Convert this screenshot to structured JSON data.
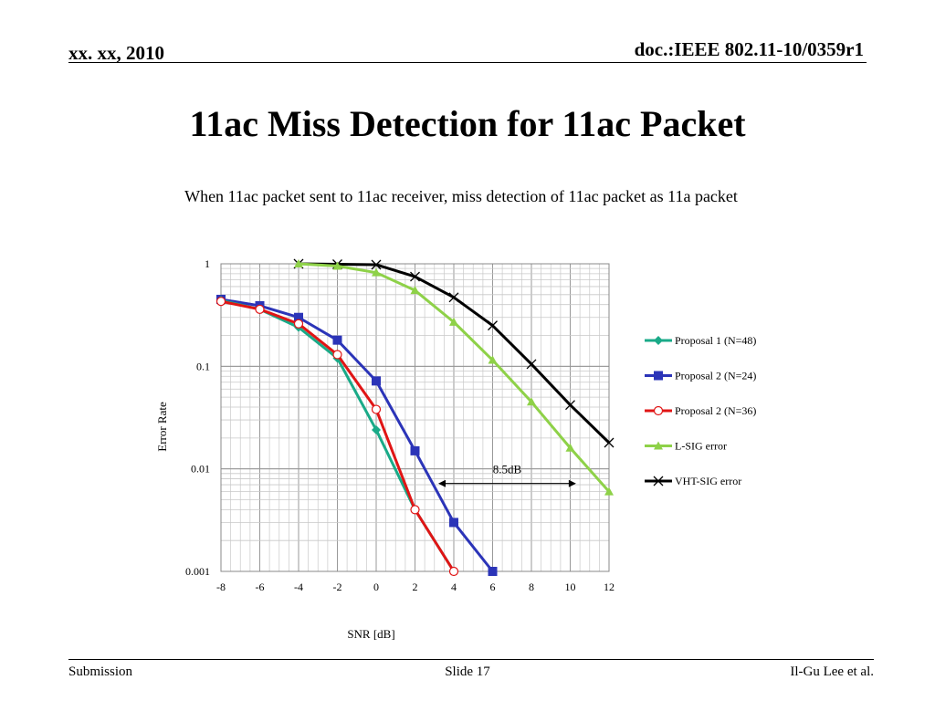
{
  "header": {
    "date": "xx. xx, 2010",
    "doc": "doc.:IEEE 802.11-10/0359r1"
  },
  "title": "11ac Miss Detection for 11ac Packet",
  "subtitle": "When 11ac packet sent to 11ac receiver, miss detection of 11ac packet as 11a packet",
  "footer": {
    "left": "Submission",
    "center": "Slide 17",
    "right": "Il-Gu Lee et al."
  },
  "chart_data": {
    "type": "line",
    "xlabel": "SNR [dB]",
    "ylabel": "Error Rate",
    "xlim": [
      -8,
      12
    ],
    "xticks": [
      -8,
      -6,
      -4,
      -2,
      0,
      2,
      4,
      6,
      8,
      10,
      12
    ],
    "ylim": [
      0.001,
      1
    ],
    "yscale": "log",
    "yticks": [
      {
        "value": 1,
        "label": "1"
      },
      {
        "value": 0.1,
        "label": "0.1"
      },
      {
        "value": 0.01,
        "label": "0.01"
      },
      {
        "value": 0.001,
        "label": "0.001"
      }
    ],
    "grid": true,
    "legend_position": "right",
    "series": [
      {
        "name": "Proposal 1 (N=48)",
        "color": "#1aaa88",
        "marker": "diamond",
        "x": [
          -8,
          -6,
          -4,
          -2,
          0,
          2,
          4
        ],
        "y": [
          0.44,
          0.36,
          0.24,
          0.12,
          0.024,
          0.004,
          0.001
        ]
      },
      {
        "name": "Proposal 2 (N=24)",
        "color": "#2b34b8",
        "marker": "square",
        "x": [
          -8,
          -6,
          -4,
          -2,
          0,
          2,
          4,
          6
        ],
        "y": [
          0.45,
          0.39,
          0.3,
          0.18,
          0.072,
          0.015,
          0.003,
          0.001
        ]
      },
      {
        "name": "Proposal 2 (N=36)",
        "color": "#e01515",
        "marker": "circle",
        "x": [
          -8,
          -6,
          -4,
          -2,
          0,
          2,
          4
        ],
        "y": [
          0.43,
          0.36,
          0.26,
          0.13,
          0.038,
          0.004,
          0.001
        ]
      },
      {
        "name": "L-SIG error",
        "color": "#8ed148",
        "marker": "triangle",
        "x": [
          -4,
          -2,
          0,
          2,
          4,
          6,
          8,
          10,
          12
        ],
        "y": [
          1.0,
          0.95,
          0.82,
          0.55,
          0.27,
          0.115,
          0.045,
          0.016,
          0.006
        ]
      },
      {
        "name": "VHT-SIG error",
        "color": "#000000",
        "marker": "x",
        "x": [
          -4,
          -2,
          0,
          2,
          4,
          6,
          8,
          10,
          12
        ],
        "y": [
          1.0,
          0.99,
          0.98,
          0.75,
          0.47,
          0.25,
          0.105,
          0.042,
          0.018
        ]
      }
    ],
    "annotations": [
      {
        "text": "8.5dB",
        "x_from": 3.2,
        "x_to": 10.3,
        "y": 0.0072
      }
    ]
  }
}
